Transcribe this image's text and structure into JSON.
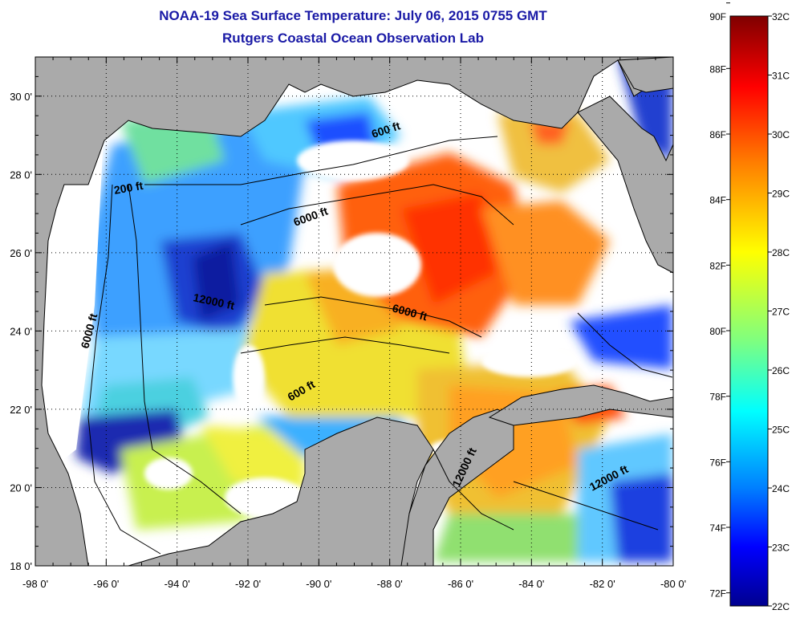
{
  "title": {
    "line1": "NOAA-19 Sea Surface Temperature:  July 06, 2015 0755 GMT",
    "line2": "Rutgers Coastal Ocean Observation Lab"
  },
  "colors": {
    "title": "#1a1aa6",
    "land": "#aaaaaa",
    "cloud": "#ffffff",
    "coast": "#000000"
  },
  "map": {
    "lon_range": [
      -98,
      -80
    ],
    "lat_range": [
      18,
      31
    ],
    "x_tick_labels": [
      "-98 0'",
      "-96 0'",
      "-94 0'",
      "-92 0'",
      "-90 0'",
      "-88 0'",
      "-86 0'",
      "-84 0'",
      "-82 0'",
      "-80 0'"
    ],
    "y_tick_labels": [
      "18 0'",
      "20 0'",
      "22 0'",
      "24 0'",
      "26 0'",
      "28 0'",
      "30 0'"
    ],
    "grid": "dotted",
    "contour_labels": [
      "600 ft",
      "200 ft",
      "6000 ft",
      "12000 ft",
      "6000 ft",
      "6000 ft",
      "600 ft",
      "12000 ft",
      "12000 ft"
    ]
  },
  "colorbar": {
    "fahrenheit_labels": [
      "90F",
      "88F",
      "86F",
      "84F",
      "82F",
      "80F",
      "78F",
      "76F",
      "74F",
      "72F"
    ],
    "celsius_labels": [
      "32C",
      "31C",
      "30C",
      "29C",
      "28C",
      "27C",
      "26C",
      "25C",
      "24C",
      "23C",
      "22C"
    ],
    "range_c": [
      22,
      32
    ],
    "gradient": [
      "#7f0000",
      "#ff0000",
      "#ff7f00",
      "#ffff00",
      "#7fff7f",
      "#00ffff",
      "#007fff",
      "#0000ff",
      "#00008f"
    ]
  }
}
